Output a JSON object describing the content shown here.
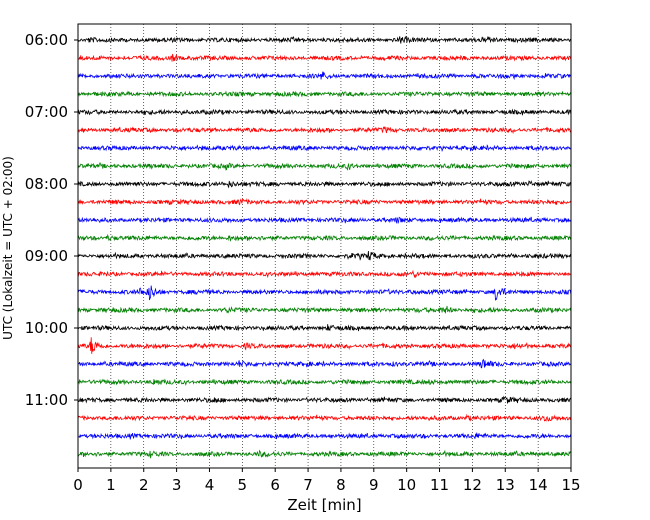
{
  "chart_data": {
    "type": "line",
    "title": "",
    "xlabel": "Zeit  [min]",
    "ylabel": "UTC (Lokalzeit = UTC + 02:00)",
    "xlim": [
      0,
      15
    ],
    "x_ticks": [
      "0",
      "1",
      "2",
      "3",
      "4",
      "5",
      "6",
      "7",
      "8",
      "9",
      "10",
      "11",
      "12",
      "13",
      "14",
      "15"
    ],
    "y_ticks": [
      "06:00",
      "07:00",
      "08:00",
      "09:00",
      "10:00",
      "11:00"
    ],
    "y_tick_rows": [
      0,
      4,
      8,
      12,
      16,
      20
    ],
    "vertical_grid": true,
    "grid_style": "dotted",
    "colors": [
      "#000000",
      "#ff0000",
      "#0000ff",
      "#008000"
    ],
    "row_interval_min": 15,
    "traces": [
      {
        "start": "06:00",
        "color": "#000000",
        "events": [
          [
            0.3,
            2
          ],
          [
            9.8,
            2.5
          ],
          [
            12.5,
            2
          ]
        ]
      },
      {
        "start": "06:15",
        "color": "#ff0000",
        "events": [
          [
            2.85,
            3
          ]
        ]
      },
      {
        "start": "06:30",
        "color": "#0000ff",
        "events": [
          [
            7.4,
            3.5
          ]
        ]
      },
      {
        "start": "06:45",
        "color": "#008000",
        "events": []
      },
      {
        "start": "07:00",
        "color": "#000000",
        "events": [
          [
            3.1,
            1.8
          ]
        ]
      },
      {
        "start": "07:15",
        "color": "#ff0000",
        "events": [
          [
            9.3,
            2.2
          ]
        ]
      },
      {
        "start": "07:30",
        "color": "#0000ff",
        "events": [
          [
            3.8,
            2
          ]
        ]
      },
      {
        "start": "07:45",
        "color": "#008000",
        "events": [
          [
            4.5,
            2
          ],
          [
            8.2,
            1.8
          ]
        ]
      },
      {
        "start": "08:00",
        "color": "#000000",
        "events": [
          [
            4.6,
            3
          ],
          [
            13.7,
            2.3
          ]
        ]
      },
      {
        "start": "08:15",
        "color": "#ff0000",
        "events": [
          [
            4.9,
            1.8
          ]
        ]
      },
      {
        "start": "08:30",
        "color": "#0000ff",
        "events": [
          [
            9.7,
            1.8
          ]
        ]
      },
      {
        "start": "08:45",
        "color": "#008000",
        "events": [
          [
            0.9,
            2
          ],
          [
            4.6,
            2.3
          ]
        ]
      },
      {
        "start": "09:00",
        "color": "#000000",
        "events": [
          [
            8.85,
            3.5
          ],
          [
            8.25,
            2
          ]
        ]
      },
      {
        "start": "09:15",
        "color": "#ff0000",
        "events": [
          [
            10.2,
            2
          ]
        ]
      },
      {
        "start": "09:30",
        "color": "#0000ff",
        "events": [
          [
            2.15,
            9
          ],
          [
            12.7,
            8.5
          ],
          [
            1.85,
            3
          ],
          [
            10.1,
            2
          ]
        ]
      },
      {
        "start": "09:45",
        "color": "#008000",
        "events": [
          [
            4.5,
            2
          ],
          [
            11.2,
            2.5
          ],
          [
            11.0,
            2
          ]
        ]
      },
      {
        "start": "10:00",
        "color": "#000000",
        "events": [
          [
            7.6,
            2.2
          ]
        ]
      },
      {
        "start": "10:15",
        "color": "#ff0000",
        "events": [
          [
            0.4,
            9
          ],
          [
            5.1,
            2
          ],
          [
            13.3,
            2
          ]
        ]
      },
      {
        "start": "10:30",
        "color": "#0000ff",
        "events": [
          [
            12.3,
            5
          ],
          [
            4.9,
            2
          ],
          [
            9.6,
            1.8
          ]
        ]
      },
      {
        "start": "10:45",
        "color": "#008000",
        "events": [
          [
            2.3,
            2
          ],
          [
            10.7,
            2
          ]
        ]
      },
      {
        "start": "11:00",
        "color": "#000000",
        "events": [
          [
            12.95,
            3.5
          ],
          [
            4.1,
            2
          ]
        ]
      },
      {
        "start": "11:15",
        "color": "#ff0000",
        "events": [
          [
            14.2,
            2.5
          ],
          [
            11.8,
            2
          ]
        ]
      },
      {
        "start": "11:30",
        "color": "#0000ff",
        "events": [
          [
            1.6,
            2.2
          ],
          [
            12.1,
            1.8
          ]
        ]
      },
      {
        "start": "11:45",
        "color": "#008000",
        "events": [
          [
            2.2,
            2.2
          ],
          [
            5.5,
            1.8
          ]
        ]
      }
    ]
  }
}
